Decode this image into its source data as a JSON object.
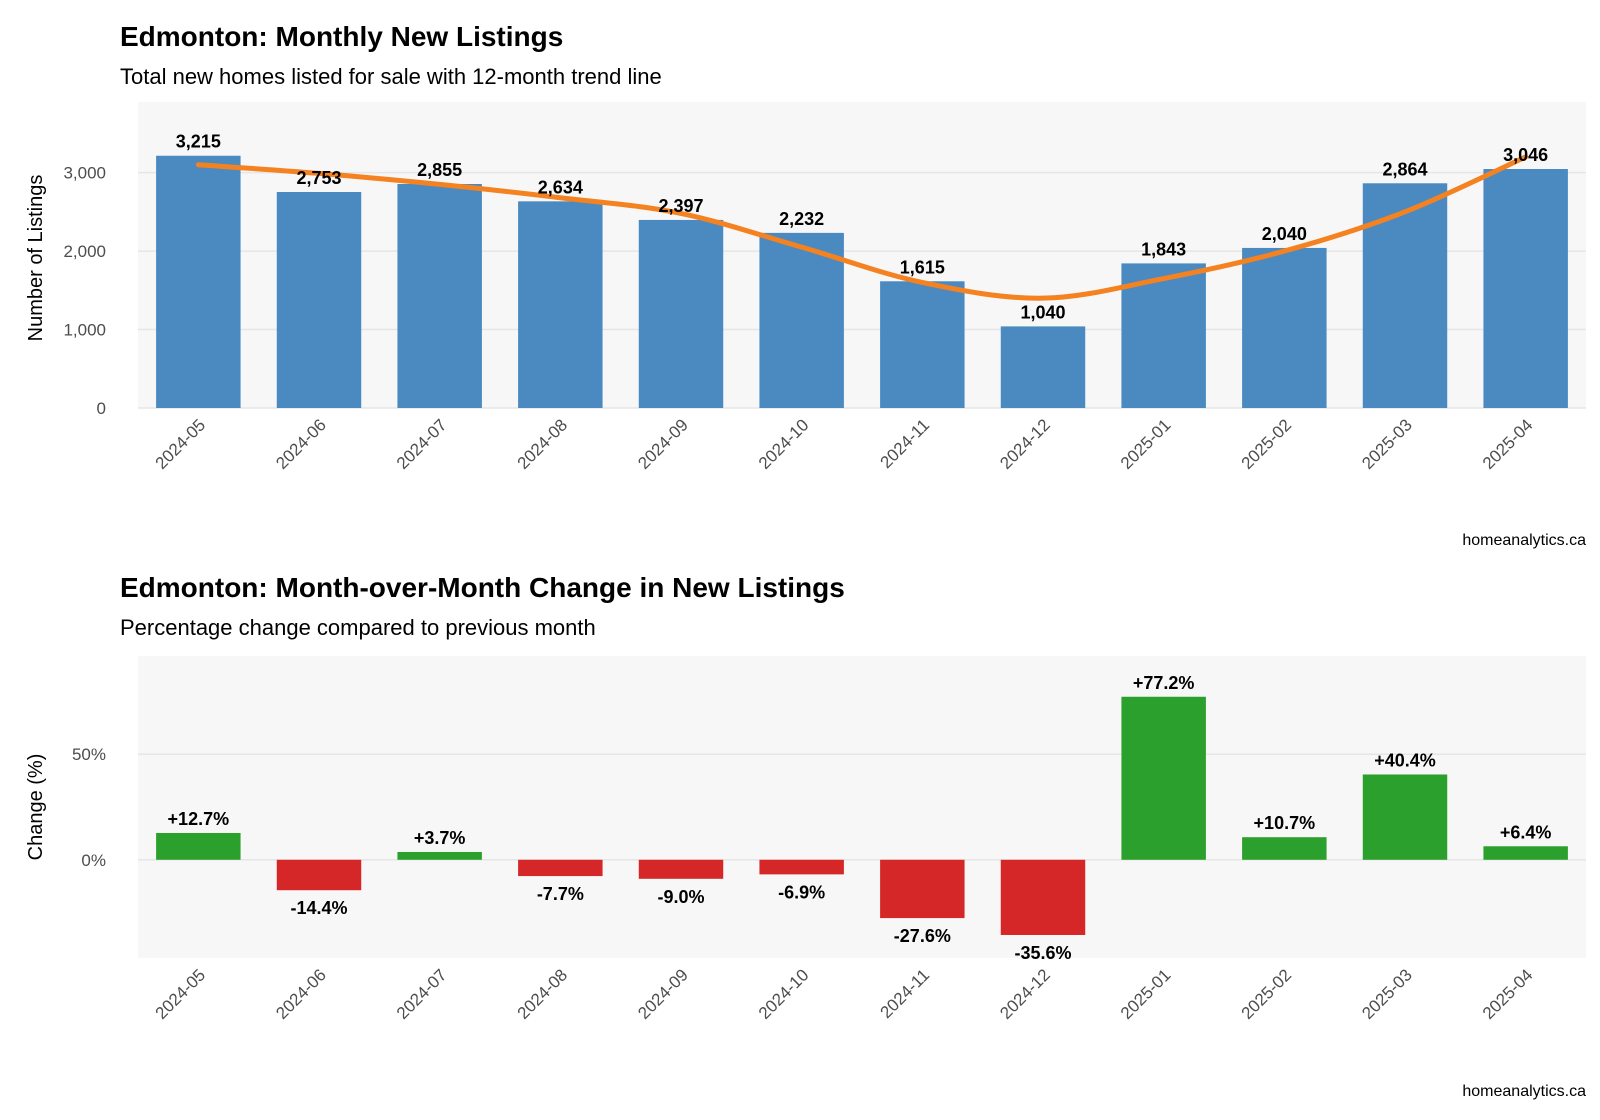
{
  "chart_data": [
    {
      "type": "bar",
      "title": "Edmonton: Monthly New Listings",
      "subtitle": "Total new homes listed for sale with 12-month trend line",
      "xlabel": "",
      "ylabel": "Number of Listings",
      "caption": "homeanalytics.ca",
      "categories": [
        "2024-05",
        "2024-06",
        "2024-07",
        "2024-08",
        "2024-09",
        "2024-10",
        "2024-11",
        "2024-12",
        "2025-01",
        "2025-02",
        "2025-03",
        "2025-04"
      ],
      "values": [
        3215,
        2753,
        2855,
        2634,
        2397,
        2232,
        1615,
        1040,
        1843,
        2040,
        2864,
        3046
      ],
      "data_labels": [
        "3,215",
        "2,753",
        "2,855",
        "2,634",
        "2,397",
        "2,232",
        "1,615",
        "1,040",
        "1,843",
        "2,040",
        "2,864",
        "3,046"
      ],
      "trend_line": [
        3100,
        2990,
        2850,
        2680,
        2480,
        2050,
        1600,
        1400,
        1650,
        2000,
        2500,
        3200
      ],
      "yticks": [
        0,
        1000,
        2000,
        3000
      ],
      "ytick_labels": [
        "0",
        "1,000",
        "2,000",
        "3,000"
      ],
      "ylim": [
        0,
        3900
      ],
      "grid": true,
      "colors": {
        "bar": "#4a8ac0",
        "trend": "#f58220",
        "panel": "#f7f7f7",
        "grid": "#e6e6e6"
      }
    },
    {
      "type": "bar",
      "title": "Edmonton: Month-over-Month Change in New Listings",
      "subtitle": "Percentage change compared to previous month",
      "xlabel": "",
      "ylabel": "Change (%)",
      "caption": "homeanalytics.ca",
      "categories": [
        "2024-05",
        "2024-06",
        "2024-07",
        "2024-08",
        "2024-09",
        "2024-10",
        "2024-11",
        "2024-12",
        "2025-01",
        "2025-02",
        "2025-03",
        "2025-04"
      ],
      "values": [
        12.7,
        -14.4,
        3.7,
        -7.7,
        -9.0,
        -6.9,
        -27.6,
        -35.6,
        77.2,
        10.7,
        40.4,
        6.4
      ],
      "data_labels": [
        "+12.7%",
        "-14.4%",
        "+3.7%",
        "-7.7%",
        "-9.0%",
        "-6.9%",
        "-27.6%",
        "-35.6%",
        "+77.2%",
        "+10.7%",
        "+40.4%",
        "+6.4%"
      ],
      "yticks": [
        0,
        50
      ],
      "ytick_labels": [
        "0%",
        "50%"
      ],
      "ylim": [
        -46.5,
        96.5
      ],
      "grid": true,
      "colors": {
        "positive": "#2ca02c",
        "negative": "#d62728",
        "panel": "#f7f7f7",
        "grid": "#e6e6e6"
      }
    }
  ]
}
